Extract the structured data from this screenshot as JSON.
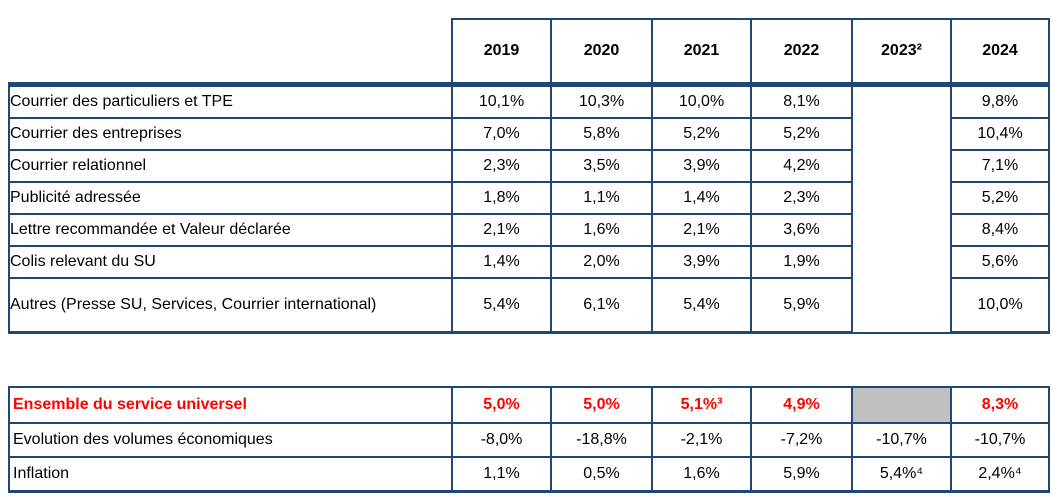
{
  "table": {
    "columns": [
      "2019",
      "2020",
      "2021",
      "2022",
      "2023²",
      "2024"
    ],
    "rows": [
      {
        "label": "Courrier des particuliers et TPE",
        "values": [
          "10,1%",
          "10,3%",
          "10,0%",
          "8,1%",
          "",
          "9,8%"
        ]
      },
      {
        "label": "Courrier des entreprises",
        "values": [
          "7,0%",
          "5,8%",
          "5,2%",
          "5,2%",
          "",
          "10,4%"
        ]
      },
      {
        "label": "Courrier relationnel",
        "values": [
          "2,3%",
          "3,5%",
          "3,9%",
          "4,2%",
          "",
          "7,1%"
        ]
      },
      {
        "label": "Publicité adressée",
        "values": [
          "1,8%",
          "1,1%",
          "1,4%",
          "2,3%",
          "",
          "5,2%"
        ]
      },
      {
        "label": "Lettre recommandée et Valeur déclarée",
        "values": [
          "2,1%",
          "1,6%",
          "2,1%",
          "3,6%",
          "",
          "8,4%"
        ]
      },
      {
        "label": "Colis relevant du SU",
        "values": [
          "1,4%",
          "2,0%",
          "3,9%",
          "1,9%",
          "",
          "5,6%"
        ]
      },
      {
        "label": "Autres (Presse SU, Services, Courrier international)",
        "values": [
          "5,4%",
          "6,1%",
          "5,4%",
          "5,9%",
          "",
          "10,0%"
        ]
      }
    ],
    "summary_rows": [
      {
        "label": "Ensemble du service universel",
        "values": [
          "5,0%",
          "5,0%",
          "5,1%³",
          "4,9%",
          "",
          "8,3%"
        ]
      },
      {
        "label": "Evolution des volumes économiques",
        "values": [
          "-8,0%",
          "-18,8%",
          "-2,1%",
          "-7,2%",
          "-10,7%",
          "-10,7%"
        ]
      },
      {
        "label": "Inflation",
        "values": [
          "1,1%",
          "0,5%",
          "1,6%",
          "5,9%",
          "5,4%⁴",
          "2,4%⁴"
        ]
      }
    ],
    "colors": {
      "border": "#1F4878",
      "highlight_text": "#FF0000",
      "masked_cell": "#C0C0C0"
    }
  }
}
